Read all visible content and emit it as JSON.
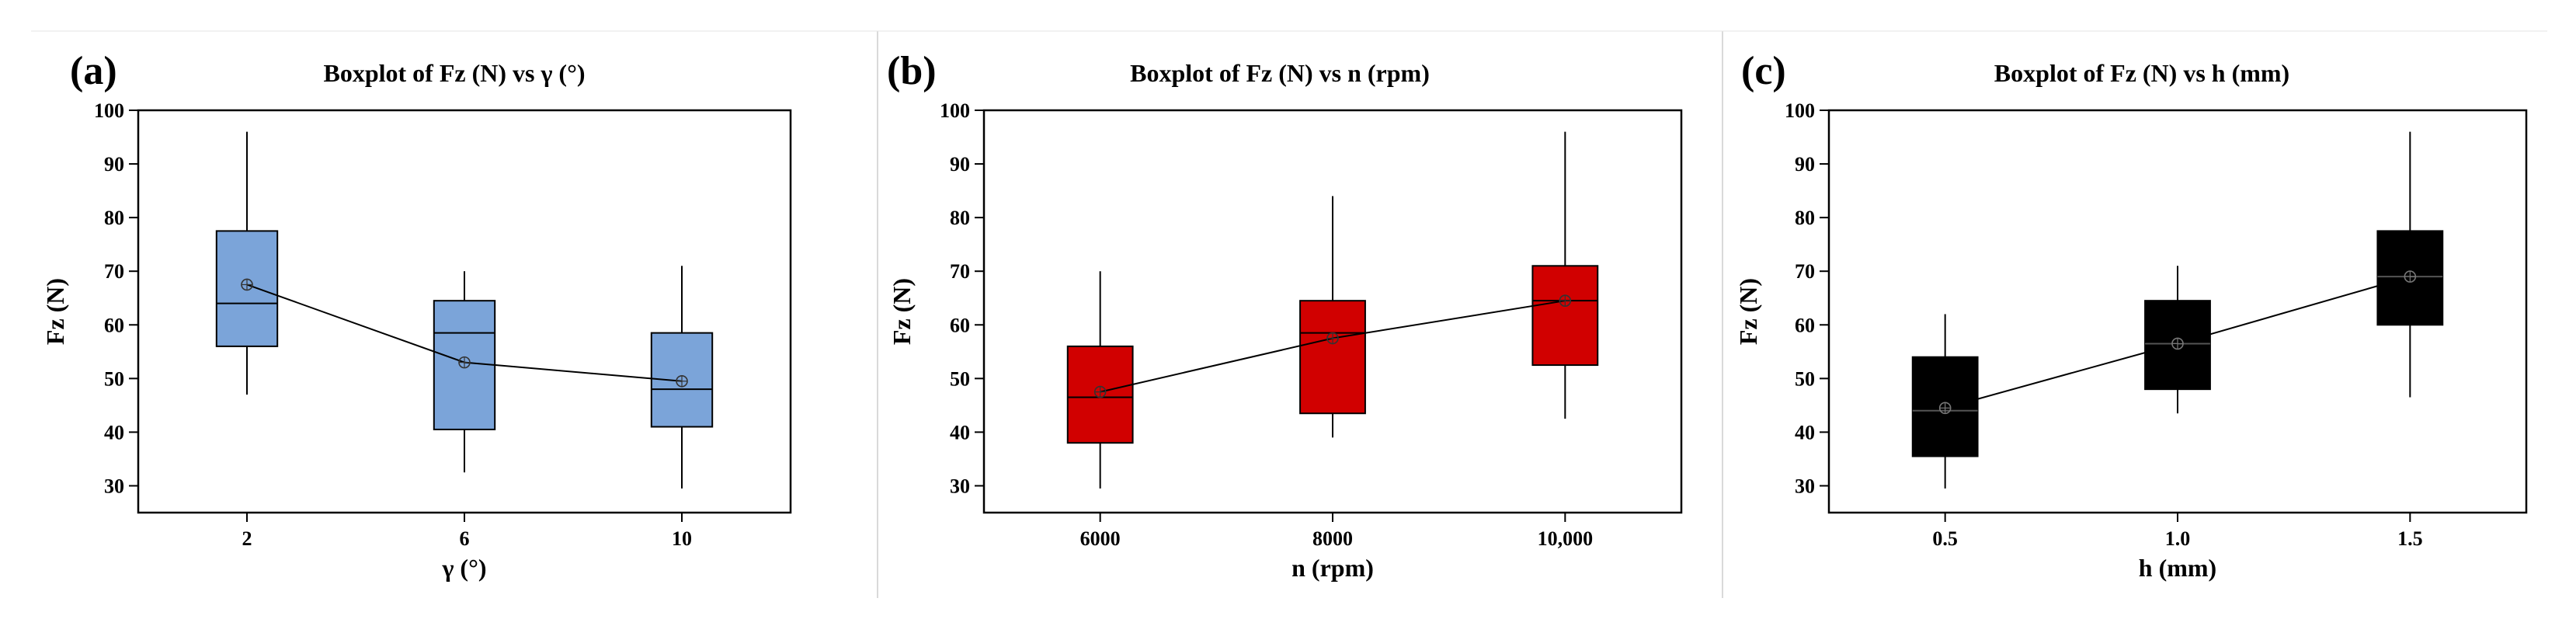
{
  "chart_data": [
    {
      "type": "box",
      "panel_label": "(a)",
      "title": "Boxplot of Fz (N) vs γ (°)",
      "xlabel": "γ (°)",
      "ylabel": "Fz (N)",
      "categories": [
        "2",
        "6",
        "10"
      ],
      "ylim": [
        25,
        100
      ],
      "yticks": [
        "30",
        "40",
        "50",
        "60",
        "70",
        "80",
        "90",
        "100"
      ],
      "box_color": "#7ba4d9",
      "boxes": [
        {
          "min": 47,
          "q1": 56,
          "median": 64,
          "q3": 77.5,
          "max": 96,
          "mean": 67.5
        },
        {
          "min": 32.5,
          "q1": 40.5,
          "median": 58.5,
          "q3": 64.5,
          "max": 70,
          "mean": 53
        },
        {
          "min": 29.5,
          "q1": 41,
          "median": 48,
          "q3": 58.5,
          "max": 71,
          "mean": 49.5
        }
      ]
    },
    {
      "type": "box",
      "panel_label": "(b)",
      "title": "Boxplot of Fz (N) vs n (rpm)",
      "xlabel": "n (rpm)",
      "ylabel": "Fz (N)",
      "categories": [
        "6000",
        "8000",
        "10,000"
      ],
      "ylim": [
        25,
        100
      ],
      "yticks": [
        "30",
        "40",
        "50",
        "60",
        "70",
        "80",
        "90",
        "100"
      ],
      "box_color": "#d10000",
      "boxes": [
        {
          "min": 29.5,
          "q1": 38,
          "median": 46.5,
          "q3": 56,
          "max": 70,
          "mean": 47.5
        },
        {
          "min": 39,
          "q1": 43.5,
          "median": 58.5,
          "q3": 64.5,
          "max": 84,
          "mean": 57.5
        },
        {
          "min": 42.5,
          "q1": 52.5,
          "median": 64.5,
          "q3": 71,
          "max": 96,
          "mean": 64.5
        }
      ]
    },
    {
      "type": "box",
      "panel_label": "(c)",
      "title": "Boxplot of Fz (N) vs h (mm)",
      "xlabel": "h (mm)",
      "ylabel": "Fz (N)",
      "categories": [
        "0.5",
        "1.0",
        "1.5"
      ],
      "ylim": [
        25,
        100
      ],
      "yticks": [
        "30",
        "40",
        "50",
        "60",
        "70",
        "80",
        "90",
        "100"
      ],
      "box_color": "#000000",
      "boxes": [
        {
          "min": 29.5,
          "q1": 35.5,
          "median": 44,
          "q3": 54,
          "max": 62,
          "mean": 44.5
        },
        {
          "min": 43.5,
          "q1": 48,
          "median": 56.5,
          "q3": 64.5,
          "max": 71,
          "mean": 56.5
        },
        {
          "min": 46.5,
          "q1": 60,
          "median": 69,
          "q3": 77.5,
          "max": 96,
          "mean": 69
        }
      ]
    }
  ]
}
